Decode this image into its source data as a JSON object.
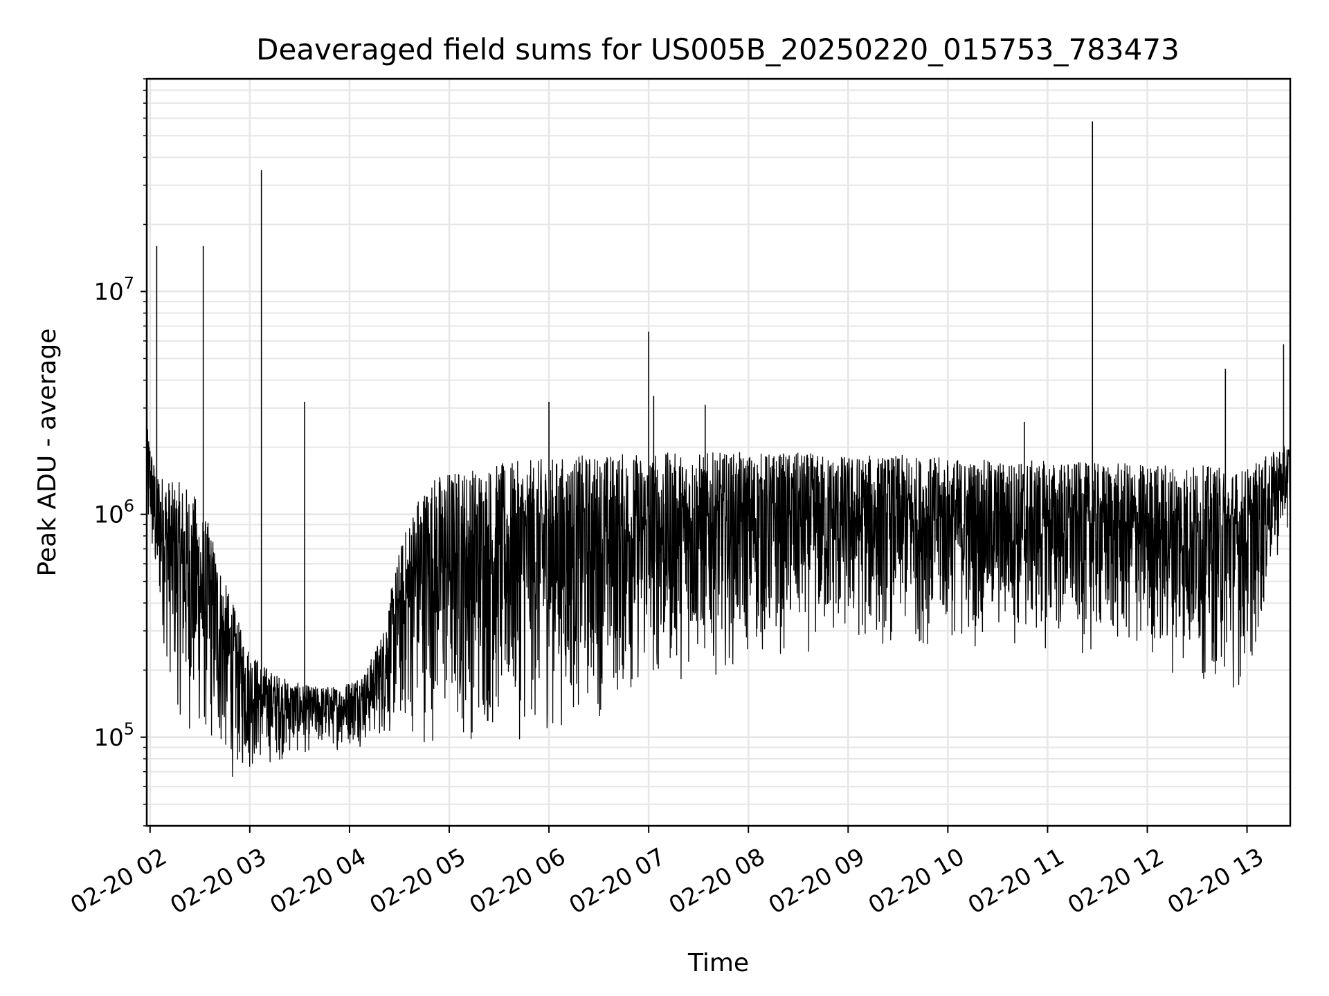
{
  "chart_data": {
    "type": "line",
    "title": "Deaveraged field sums for US005B_20250220_015753_783473",
    "xlabel": "Time",
    "ylabel": "Peak ADU - average",
    "yscale": "log",
    "ylim": [
      40000,
      90000000
    ],
    "xlim": [
      "2025-02-20 01:58",
      "2025-02-20 13:26"
    ],
    "grid": true,
    "line_color": "#000000",
    "x_ticks": [
      {
        "label": "02-20 02",
        "time": "2025-02-20 02:00"
      },
      {
        "label": "02-20 03",
        "time": "2025-02-20 03:00"
      },
      {
        "label": "02-20 04",
        "time": "2025-02-20 04:00"
      },
      {
        "label": "02-20 05",
        "time": "2025-02-20 05:00"
      },
      {
        "label": "02-20 06",
        "time": "2025-02-20 06:00"
      },
      {
        "label": "02-20 07",
        "time": "2025-02-20 07:00"
      },
      {
        "label": "02-20 08",
        "time": "2025-02-20 08:00"
      },
      {
        "label": "02-20 09",
        "time": "2025-02-20 09:00"
      },
      {
        "label": "02-20 10",
        "time": "2025-02-20 10:00"
      },
      {
        "label": "02-20 11",
        "time": "2025-02-20 11:00"
      },
      {
        "label": "02-20 12",
        "time": "2025-02-20 12:00"
      },
      {
        "label": "02-20 13",
        "time": "2025-02-20 13:00"
      }
    ],
    "y_ticks": [
      {
        "base": "10",
        "exp": "5",
        "value": 100000
      },
      {
        "base": "10",
        "exp": "6",
        "value": 1000000
      },
      {
        "base": "10",
        "exp": "7",
        "value": 10000000
      }
    ],
    "series": [
      {
        "x": [
          "2025-02-20 01:58",
          "2025-02-20 02:00",
          "2025-02-20 02:02",
          "2025-02-20 02:05",
          "2025-02-20 02:08",
          "2025-02-20 02:10",
          "2025-02-20 02:13",
          "2025-02-20 02:16",
          "2025-02-20 02:20",
          "2025-02-20 02:24",
          "2025-02-20 02:28",
          "2025-02-20 02:32",
          "2025-02-20 02:36",
          "2025-02-20 02:40",
          "2025-02-20 02:45",
          "2025-02-20 02:50",
          "2025-02-20 02:55",
          "2025-02-20 03:00",
          "2025-02-20 03:06",
          "2025-02-20 03:12",
          "2025-02-20 03:18",
          "2025-02-20 03:24",
          "2025-02-20 03:30",
          "2025-02-20 03:36",
          "2025-02-20 03:42",
          "2025-02-20 03:48",
          "2025-02-20 03:54",
          "2025-02-20 04:00",
          "2025-02-20 04:10",
          "2025-02-20 04:20",
          "2025-02-20 04:30",
          "2025-02-20 04:40",
          "2025-02-20 04:50",
          "2025-02-20 05:00",
          "2025-02-20 05:15",
          "2025-02-20 05:30",
          "2025-02-20 05:45",
          "2025-02-20 06:00",
          "2025-02-20 06:20",
          "2025-02-20 06:40",
          "2025-02-20 07:00",
          "2025-02-20 07:30",
          "2025-02-20 08:00",
          "2025-02-20 08:30",
          "2025-02-20 09:00",
          "2025-02-20 09:30",
          "2025-02-20 10:00",
          "2025-02-20 10:30",
          "2025-02-20 11:00",
          "2025-02-20 11:30",
          "2025-02-20 12:00",
          "2025-02-20 12:20",
          "2025-02-20 12:40",
          "2025-02-20 12:55",
          "2025-02-20 13:05",
          "2025-02-20 13:15",
          "2025-02-20 13:26"
        ],
        "low": [
          500000,
          700000,
          400000,
          300000,
          250000,
          180000,
          150000,
          120000,
          100000,
          90000,
          85000,
          80000,
          75000,
          70000,
          65000,
          60000,
          62000,
          65000,
          70000,
          72000,
          75000,
          78000,
          80000,
          82000,
          84000,
          85000,
          86000,
          88000,
          90000,
          92000,
          90000,
          88000,
          86000,
          85000,
          86000,
          88000,
          90000,
          95000,
          110000,
          120000,
          150000,
          180000,
          200000,
          220000,
          230000,
          240000,
          240000,
          240000,
          230000,
          220000,
          200000,
          180000,
          160000,
          150000,
          200000,
          500000,
          900000
        ],
        "high": [
          2500000,
          2200000,
          1800000,
          1600000,
          1500000,
          1500000,
          1400000,
          1400000,
          1400000,
          1300000,
          1200000,
          1000000,
          900000,
          700000,
          500000,
          400000,
          300000,
          250000,
          220000,
          200000,
          190000,
          180000,
          175000,
          170000,
          170000,
          170000,
          170000,
          180000,
          200000,
          300000,
          700000,
          1200000,
          1500000,
          1600000,
          1650000,
          1700000,
          1750000,
          1800000,
          1850000,
          1900000,
          1900000,
          1900000,
          1900000,
          1900000,
          1850000,
          1850000,
          1800000,
          1750000,
          1750000,
          1700000,
          1700000,
          1700000,
          1650000,
          1600000,
          1700000,
          1900000,
          2100000
        ]
      }
    ],
    "spikes": [
      {
        "time": "2025-02-20 02:04",
        "value": 16000000
      },
      {
        "time": "2025-02-20 02:32",
        "value": 16000000
      },
      {
        "time": "2025-02-20 03:07",
        "value": 35000000
      },
      {
        "time": "2025-02-20 03:33",
        "value": 3200000
      },
      {
        "time": "2025-02-20 06:00",
        "value": 3200000
      },
      {
        "time": "2025-02-20 07:00",
        "value": 6600000
      },
      {
        "time": "2025-02-20 07:03",
        "value": 3400000
      },
      {
        "time": "2025-02-20 07:34",
        "value": 3100000
      },
      {
        "time": "2025-02-20 10:46",
        "value": 2600000
      },
      {
        "time": "2025-02-20 11:27",
        "value": 58000000
      },
      {
        "time": "2025-02-20 12:47",
        "value": 4500000
      },
      {
        "time": "2025-02-20 13:22",
        "value": 5800000
      }
    ]
  }
}
